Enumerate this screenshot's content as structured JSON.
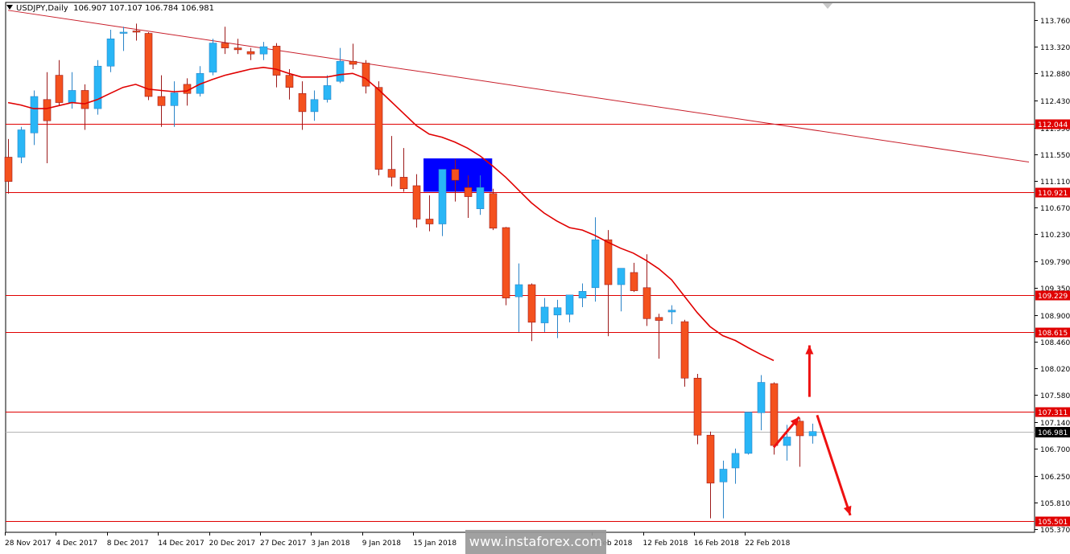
{
  "header": {
    "symbol": "USDJPY,Daily",
    "ohlc": "106.907 107.107 106.784 106.981"
  },
  "watermark": "www.instaforex.com",
  "colors": {
    "bull": "#29b6f6",
    "bear": "#f4511e",
    "wick_bull": "#2b84c8",
    "wick_bear": "#9c1a1a",
    "level": "#e00000",
    "ma": "#e00000",
    "trendline": "#c81e2a",
    "zone": "#0000ff",
    "arrow": "#ee1111",
    "grid_current": "#b4b4b4"
  },
  "chart_data": {
    "type": "candlestick",
    "symbol": "USDJPY",
    "timeframe": "Daily",
    "y_ticks": [
      "113.760",
      "113.320",
      "112.880",
      "112.430",
      "111.990",
      "111.550",
      "111.110",
      "110.670",
      "110.230",
      "109.790",
      "109.350",
      "108.900",
      "108.460",
      "108.020",
      "107.580",
      "107.140",
      "106.700",
      "106.250",
      "105.810",
      "105.370"
    ],
    "ylim": [
      105.32,
      114.05
    ],
    "x_labels": [
      "28 Nov 2017",
      "4 Dec 2017",
      "8 Dec 2017",
      "14 Dec 2017",
      "20 Dec 2017",
      "27 Dec 2017",
      "3 Jan 2018",
      "9 Jan 2018",
      "15 Jan 2018",
      "6 Feb 2018",
      "12 Feb 2018",
      "16 Feb 2018",
      "22 Feb 2018"
    ],
    "x_label_index": [
      0,
      4,
      8,
      12,
      16,
      20,
      24,
      28,
      32,
      46,
      50,
      54,
      58
    ],
    "candles": [
      {
        "o": 111.5,
        "h": 111.8,
        "l": 110.9,
        "c": 111.1
      },
      {
        "o": 111.5,
        "h": 112.0,
        "l": 111.4,
        "c": 111.95
      },
      {
        "o": 111.9,
        "h": 112.6,
        "l": 111.7,
        "c": 112.5
      },
      {
        "o": 112.45,
        "h": 112.9,
        "l": 111.4,
        "c": 112.1
      },
      {
        "o": 112.85,
        "h": 113.1,
        "l": 112.35,
        "c": 112.4
      },
      {
        "o": 112.4,
        "h": 112.9,
        "l": 112.3,
        "c": 112.6
      },
      {
        "o": 112.6,
        "h": 112.7,
        "l": 111.95,
        "c": 112.3
      },
      {
        "o": 112.3,
        "h": 113.1,
        "l": 112.2,
        "c": 113.0
      },
      {
        "o": 113.0,
        "h": 113.6,
        "l": 112.9,
        "c": 113.45
      },
      {
        "o": 113.55,
        "h": 113.65,
        "l": 113.25,
        "c": 113.56
      },
      {
        "o": 113.58,
        "h": 113.7,
        "l": 113.42,
        "c": 113.56
      },
      {
        "o": 113.54,
        "h": 113.56,
        "l": 112.44,
        "c": 112.5
      },
      {
        "o": 112.5,
        "h": 112.85,
        "l": 112.0,
        "c": 112.35
      },
      {
        "o": 112.35,
        "h": 112.75,
        "l": 112.0,
        "c": 112.56
      },
      {
        "o": 112.7,
        "h": 112.8,
        "l": 112.35,
        "c": 112.55
      },
      {
        "o": 112.55,
        "h": 113.0,
        "l": 112.5,
        "c": 112.88
      },
      {
        "o": 112.9,
        "h": 113.45,
        "l": 112.85,
        "c": 113.38
      },
      {
        "o": 113.38,
        "h": 113.65,
        "l": 113.2,
        "c": 113.3
      },
      {
        "o": 113.3,
        "h": 113.45,
        "l": 113.2,
        "c": 113.27
      },
      {
        "o": 113.24,
        "h": 113.3,
        "l": 113.1,
        "c": 113.2
      },
      {
        "o": 113.2,
        "h": 113.4,
        "l": 113.1,
        "c": 113.32
      },
      {
        "o": 113.33,
        "h": 113.38,
        "l": 112.65,
        "c": 112.85
      },
      {
        "o": 112.85,
        "h": 112.95,
        "l": 112.45,
        "c": 112.65
      },
      {
        "o": 112.55,
        "h": 112.75,
        "l": 111.95,
        "c": 112.25
      },
      {
        "o": 112.25,
        "h": 112.6,
        "l": 112.1,
        "c": 112.45
      },
      {
        "o": 112.45,
        "h": 112.85,
        "l": 112.4,
        "c": 112.68
      },
      {
        "o": 112.75,
        "h": 113.3,
        "l": 112.72,
        "c": 113.08
      },
      {
        "o": 113.08,
        "h": 113.37,
        "l": 112.95,
        "c": 113.03
      },
      {
        "o": 113.05,
        "h": 113.1,
        "l": 112.55,
        "c": 112.67
      },
      {
        "o": 112.65,
        "h": 112.75,
        "l": 111.2,
        "c": 111.3
      },
      {
        "o": 111.3,
        "h": 111.85,
        "l": 111.02,
        "c": 111.17
      },
      {
        "o": 111.17,
        "h": 111.65,
        "l": 110.93,
        "c": 110.98
      },
      {
        "o": 111.03,
        "h": 111.22,
        "l": 110.34,
        "c": 110.48
      },
      {
        "o": 110.48,
        "h": 110.87,
        "l": 110.28,
        "c": 110.4
      },
      {
        "o": 110.4,
        "h": 111.3,
        "l": 110.2,
        "c": 111.3
      },
      {
        "o": 111.3,
        "h": 111.47,
        "l": 110.77,
        "c": 111.12
      },
      {
        "o": 111.0,
        "h": 111.2,
        "l": 110.5,
        "c": 110.85
      },
      {
        "o": 110.65,
        "h": 111.2,
        "l": 110.55,
        "c": 111.0
      },
      {
        "o": 110.9,
        "h": 110.98,
        "l": 110.3,
        "c": 110.33
      },
      {
        "o": 110.34,
        "h": 110.35,
        "l": 109.06,
        "c": 109.18
      },
      {
        "o": 109.2,
        "h": 109.75,
        "l": 108.62,
        "c": 109.4
      },
      {
        "o": 109.4,
        "h": 109.42,
        "l": 108.47,
        "c": 108.78
      },
      {
        "o": 108.77,
        "h": 109.18,
        "l": 108.62,
        "c": 109.03
      },
      {
        "o": 108.9,
        "h": 109.15,
        "l": 108.52,
        "c": 109.02
      },
      {
        "o": 108.91,
        "h": 109.22,
        "l": 108.78,
        "c": 109.23
      },
      {
        "o": 109.18,
        "h": 109.42,
        "l": 109.03,
        "c": 109.29
      },
      {
        "o": 109.35,
        "h": 110.51,
        "l": 109.12,
        "c": 110.14
      },
      {
        "o": 110.14,
        "h": 110.3,
        "l": 108.55,
        "c": 109.4
      },
      {
        "o": 109.4,
        "h": 109.65,
        "l": 108.96,
        "c": 109.67
      },
      {
        "o": 109.6,
        "h": 109.76,
        "l": 109.28,
        "c": 109.3
      },
      {
        "o": 109.35,
        "h": 109.9,
        "l": 108.72,
        "c": 108.84
      },
      {
        "o": 108.86,
        "h": 108.92,
        "l": 108.18,
        "c": 108.81
      },
      {
        "o": 108.95,
        "h": 109.06,
        "l": 108.75,
        "c": 108.98
      },
      {
        "o": 108.79,
        "h": 108.82,
        "l": 107.72,
        "c": 107.86
      },
      {
        "o": 107.86,
        "h": 107.93,
        "l": 106.77,
        "c": 106.92
      },
      {
        "o": 106.92,
        "h": 106.98,
        "l": 105.55,
        "c": 106.13
      },
      {
        "o": 106.15,
        "h": 106.5,
        "l": 105.55,
        "c": 106.36
      },
      {
        "o": 106.38,
        "h": 106.7,
        "l": 106.12,
        "c": 106.62
      },
      {
        "o": 106.62,
        "h": 107.22,
        "l": 106.6,
        "c": 107.3
      },
      {
        "o": 107.29,
        "h": 107.91,
        "l": 107.0,
        "c": 107.79
      },
      {
        "o": 107.77,
        "h": 107.79,
        "l": 106.6,
        "c": 106.75
      },
      {
        "o": 106.75,
        "h": 107.09,
        "l": 106.5,
        "c": 106.89
      },
      {
        "o": 107.15,
        "h": 107.2,
        "l": 106.4,
        "c": 106.91
      },
      {
        "o": 106.91,
        "h": 107.11,
        "l": 106.78,
        "c": 106.98
      }
    ],
    "ma_period_note": "",
    "moving_average": [
      112.4,
      112.36,
      112.3,
      112.3,
      112.35,
      112.4,
      112.38,
      112.45,
      112.55,
      112.65,
      112.7,
      112.62,
      112.6,
      112.58,
      112.59,
      112.7,
      112.78,
      112.85,
      112.9,
      112.95,
      112.98,
      112.95,
      112.88,
      112.82,
      112.82,
      112.82,
      112.86,
      112.88,
      112.8,
      112.62,
      112.42,
      112.22,
      112.02,
      111.88,
      111.83,
      111.75,
      111.65,
      111.52,
      111.35,
      111.17,
      110.96,
      110.75,
      110.58,
      110.45,
      110.34,
      110.3,
      110.21,
      110.1,
      110.0,
      109.92,
      109.8,
      109.66,
      109.48,
      109.21,
      108.94,
      108.71,
      108.56,
      108.48,
      108.36,
      108.25,
      108.15
    ],
    "levels": [
      {
        "price": 112.044,
        "label": "112.044"
      },
      {
        "price": 110.921,
        "label": "110.921"
      },
      {
        "price": 109.229,
        "label": "109.229"
      },
      {
        "price": 108.615,
        "label": "108.615"
      },
      {
        "price": 107.311,
        "label": "107.311"
      },
      {
        "price": 105.501,
        "label": "105.501"
      }
    ],
    "current_price": {
      "price": 106.981,
      "label": "106.981"
    },
    "trendline": {
      "from": {
        "index": 0,
        "price": 113.92
      },
      "to": {
        "index": 80,
        "price": 111.42
      }
    },
    "zone": {
      "from_index": 33,
      "to_index": 38,
      "top": 111.48,
      "bottom": 110.93
    },
    "arrows": [
      {
        "from": {
          "index": 60,
          "price": 106.72
        },
        "to": {
          "index": 62,
          "price": 107.22
        },
        "label": ""
      },
      {
        "from": {
          "index": 62.8,
          "price": 107.55
        },
        "to": {
          "index": 62.8,
          "price": 108.4
        },
        "label": ""
      },
      {
        "from": {
          "index": 63.4,
          "price": 107.25
        },
        "to": {
          "index": 66,
          "price": 105.6
        },
        "label": ""
      }
    ]
  }
}
